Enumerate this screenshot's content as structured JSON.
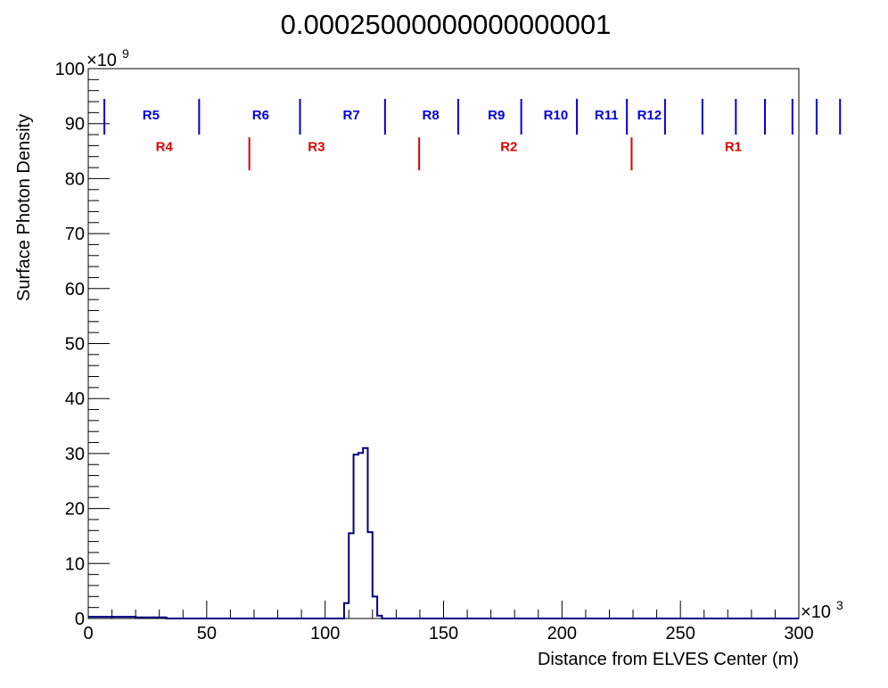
{
  "chart_data": {
    "type": "bar",
    "histogram": true,
    "title": "0.00025000000000000001",
    "xlabel": "Distance from ELVES Center (m)",
    "ylabel": "Surface Photon Density",
    "x_multiplier": "10",
    "x_exponent": "3",
    "y_multiplier": "10",
    "y_exponent": "9",
    "xlim": [
      0,
      300
    ],
    "ylim": [
      0,
      100
    ],
    "x_ticks": [
      "0",
      "50",
      "100",
      "150",
      "200",
      "250",
      "300"
    ],
    "y_ticks": [
      "0",
      "10",
      "20",
      "30",
      "40",
      "50",
      "60",
      "70",
      "80",
      "90",
      "100"
    ],
    "grid": false,
    "line_color": "#000080",
    "bins": [
      {
        "x0": 0,
        "x1": 20,
        "value": 0.3
      },
      {
        "x0": 20,
        "x1": 33,
        "value": 0.2
      },
      {
        "x0": 33,
        "x1": 108,
        "value": 0.0
      },
      {
        "x0": 108,
        "x1": 110,
        "value": 2.8
      },
      {
        "x0": 110,
        "x1": 112,
        "value": 15.5
      },
      {
        "x0": 112,
        "x1": 114,
        "value": 29.8
      },
      {
        "x0": 114,
        "x1": 116,
        "value": 30.1
      },
      {
        "x0": 116,
        "x1": 118,
        "value": 31.0
      },
      {
        "x0": 118,
        "x1": 120,
        "value": 15.7
      },
      {
        "x0": 120,
        "x1": 122,
        "value": 4.0
      },
      {
        "x0": 122,
        "x1": 124,
        "value": 0.5
      },
      {
        "x0": 124,
        "x1": 300,
        "value": 0.0
      }
    ],
    "ring_markers_blue": {
      "color": "#0000dd",
      "y_range": [
        88,
        94.5
      ],
      "x_positions": [
        6.8,
        46.8,
        89.4,
        125.3,
        156.2,
        182.8,
        206.3,
        227.4,
        243.5,
        259.3,
        273.4,
        285.7,
        297.3,
        307.5,
        317.4
      ],
      "labels": [
        {
          "text": "R5",
          "x": 26.5
        },
        {
          "text": "R6",
          "x": 72.8
        },
        {
          "text": "R7",
          "x": 111.1
        },
        {
          "text": "R8",
          "x": 144.6
        },
        {
          "text": "R9",
          "x": 172.3
        },
        {
          "text": "R10",
          "x": 197.4
        },
        {
          "text": "R11",
          "x": 218.8
        },
        {
          "text": "R12",
          "x": 236.9
        }
      ],
      "label_y": 90.8
    },
    "ring_markers_red": {
      "color": "#dd0000",
      "y_range": [
        81.5,
        87.5
      ],
      "x_positions": [
        68.0,
        139.7,
        229.4
      ],
      "labels": [
        {
          "text": "R4",
          "x": 32.1
        },
        {
          "text": "R3",
          "x": 96.3
        },
        {
          "text": "R2",
          "x": 177.6
        },
        {
          "text": "R1",
          "x": 272.3
        }
      ],
      "label_y": 85.0
    }
  }
}
